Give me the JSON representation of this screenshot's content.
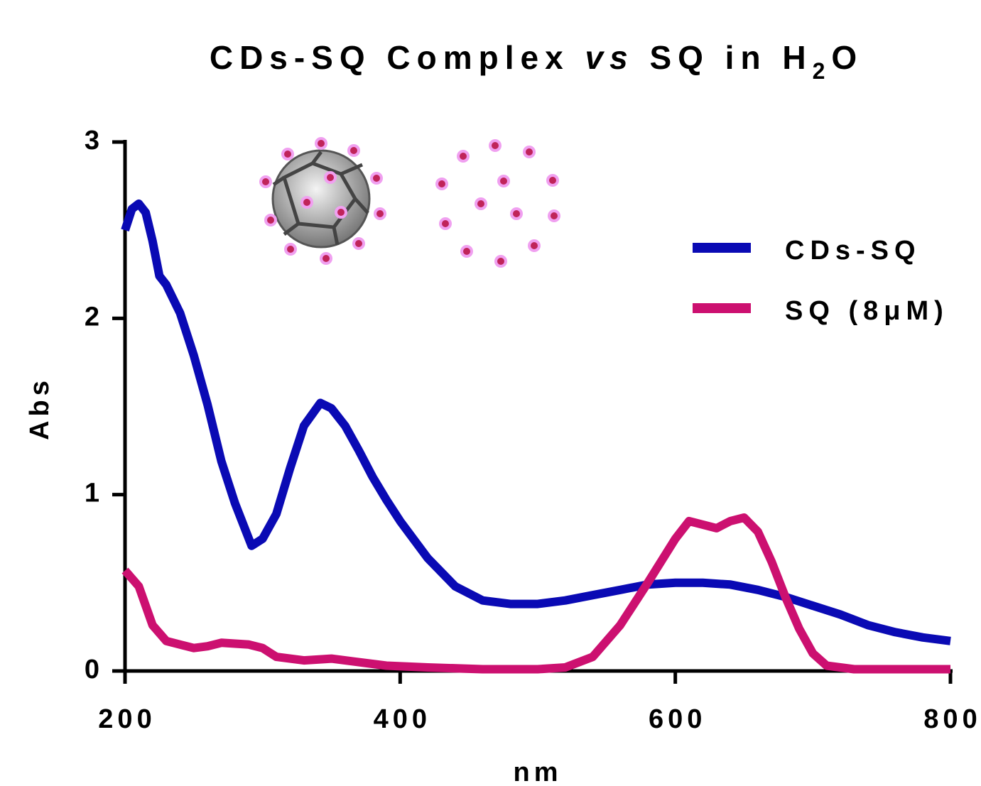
{
  "chart_data": {
    "type": "line",
    "title": [
      "CDs-SQ Complex",
      "vs",
      "SQ in H",
      "2",
      "O"
    ],
    "xlabel": "nm",
    "ylabel": "Abs",
    "xlim": [
      200,
      800
    ],
    "xticks": [
      200,
      400,
      600,
      800
    ],
    "ylim": [
      0,
      3
    ],
    "yticks": [
      0,
      1,
      2,
      3
    ],
    "legend": "upper right",
    "series": [
      {
        "name": "CDs-SQ",
        "color": "#0a0ab4",
        "x": [
          200,
          205,
          210,
          215,
          220,
          225,
          230,
          240,
          250,
          260,
          270,
          280,
          292,
          300,
          310,
          320,
          330,
          342,
          350,
          360,
          370,
          380,
          390,
          400,
          420,
          440,
          460,
          480,
          500,
          520,
          540,
          560,
          580,
          600,
          620,
          640,
          660,
          680,
          700,
          720,
          740,
          760,
          780,
          800
        ],
        "values": [
          2.5,
          2.62,
          2.65,
          2.6,
          2.44,
          2.24,
          2.19,
          2.03,
          1.79,
          1.51,
          1.19,
          0.95,
          0.71,
          0.75,
          0.89,
          1.15,
          1.39,
          1.52,
          1.49,
          1.39,
          1.25,
          1.1,
          0.97,
          0.85,
          0.64,
          0.48,
          0.4,
          0.38,
          0.38,
          0.4,
          0.43,
          0.46,
          0.49,
          0.5,
          0.5,
          0.49,
          0.46,
          0.42,
          0.37,
          0.32,
          0.26,
          0.22,
          0.19,
          0.17
        ]
      },
      {
        "name": "SQ (8μM)",
        "color": "#cc1070",
        "x": [
          200,
          210,
          220,
          230,
          250,
          260,
          270,
          290,
          300,
          310,
          330,
          350,
          370,
          390,
          420,
          460,
          500,
          520,
          540,
          560,
          580,
          600,
          610,
          620,
          630,
          640,
          650,
          660,
          670,
          680,
          690,
          700,
          710,
          730,
          800
        ],
        "values": [
          0.57,
          0.48,
          0.26,
          0.17,
          0.13,
          0.14,
          0.16,
          0.15,
          0.13,
          0.08,
          0.06,
          0.07,
          0.05,
          0.03,
          0.02,
          0.01,
          0.01,
          0.02,
          0.08,
          0.26,
          0.5,
          0.75,
          0.85,
          0.83,
          0.81,
          0.85,
          0.87,
          0.79,
          0.62,
          0.42,
          0.24,
          0.1,
          0.03,
          0.01,
          0.01
        ]
      }
    ]
  }
}
